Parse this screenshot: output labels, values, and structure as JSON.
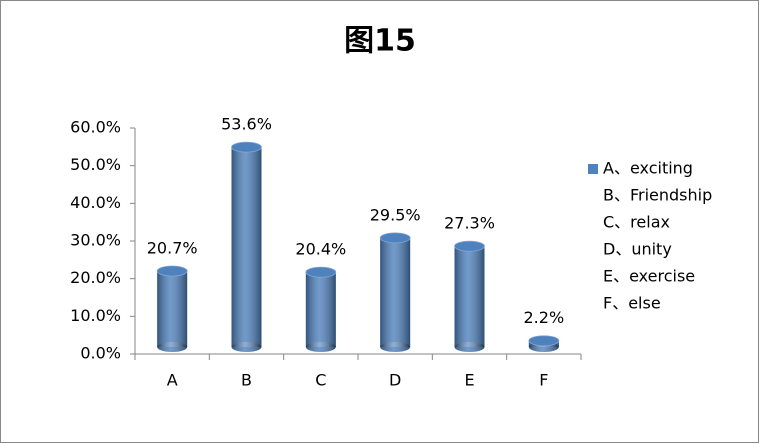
{
  "chart_data": {
    "type": "bar",
    "title": "图15",
    "categories": [
      "A",
      "B",
      "C",
      "D",
      "E",
      "F"
    ],
    "values": [
      20.7,
      53.6,
      20.4,
      29.5,
      27.3,
      2.2
    ],
    "value_labels": [
      "20.7%",
      "53.6%",
      "20.4%",
      "29.5%",
      "27.3%",
      "2.2%"
    ],
    "color": "#4f81bd",
    "legend": [
      "A、exciting",
      "B、Friendship",
      "C、relax",
      "D、unity",
      "E、exercise",
      "F、else"
    ],
    "ylim": [
      0,
      60
    ],
    "yticks": [
      {
        "value": 0,
        "label": "0.0%"
      },
      {
        "value": 10,
        "label": "10.0%"
      },
      {
        "value": 20,
        "label": "20.0%"
      },
      {
        "value": 30,
        "label": "30.0%"
      },
      {
        "value": 40,
        "label": "40.0%"
      },
      {
        "value": 50,
        "label": "50.0%"
      },
      {
        "value": 60,
        "label": "60.0%"
      }
    ]
  }
}
